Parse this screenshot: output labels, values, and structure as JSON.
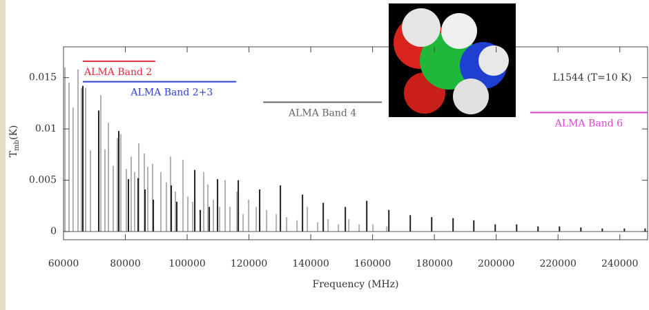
{
  "chart_data": {
    "type": "spectrum",
    "xlabel": "Frequency (MHz)",
    "ylabel": {
      "main": "T",
      "sub": "mb",
      "unit": "(K)"
    },
    "annotation": "L1544 (T=10 K)",
    "xlim": [
      60000,
      249000
    ],
    "ylim": [
      -0.0008,
      0.018
    ],
    "xticks": [
      60000,
      80000,
      100000,
      120000,
      140000,
      160000,
      180000,
      200000,
      220000,
      240000
    ],
    "yticks": [
      0,
      0.005,
      0.01,
      0.015
    ],
    "bands": [
      {
        "label": "ALMA Band 2",
        "color": "#e8283a",
        "xrange": [
          66260,
          89700
        ],
        "y": 0.0166
      },
      {
        "label": "ALMA Band 2+3",
        "color": "#2a3fd6",
        "xrange": [
          66260,
          115900
        ],
        "y": 0.0146
      },
      {
        "label": "ALMA Band 4",
        "color": "#666666",
        "xrange": [
          124600,
          163000
        ],
        "y": 0.0126
      },
      {
        "label": "ALMA Band 6",
        "color": "#e040d0",
        "xrange": [
          211000,
          249000
        ],
        "y": 0.0116
      }
    ],
    "series": [
      {
        "color": "#b0b0b0",
        "x": [
          60450,
          61790,
          63100,
          64690,
          65810,
          67150,
          68720,
          72070,
          73410,
          74530,
          76090,
          77430,
          78550,
          80340,
          81900,
          83020,
          84360,
          86150,
          87270,
          88830,
          91510,
          93300,
          94640,
          96210,
          98670,
          100230,
          101800,
          105370,
          106710,
          108500,
          110510,
          112300,
          113860,
          116100,
          118110,
          119900,
          122360,
          125710,
          128840,
          132190,
          135540,
          138900,
          142250,
          145600,
          148950,
          152310,
          155660,
          160130,
          164600
        ],
        "values": [
          0.016,
          0.0145,
          0.0121,
          0.0158,
          0.014,
          0.014,
          0.0079,
          0.0133,
          0.008,
          0.0106,
          0.0064,
          0.0091,
          0.0095,
          0.0061,
          0.0073,
          0.0058,
          0.0086,
          0.0076,
          0.0063,
          0.0066,
          0.0058,
          0.0048,
          0.0073,
          0.0039,
          0.007,
          0.0034,
          0.0029,
          0.0058,
          0.0046,
          0.0031,
          0.0024,
          0.005,
          0.0024,
          0.0039,
          0.0017,
          0.0031,
          0.0024,
          0.0021,
          0.0017,
          0.0014,
          0.0011,
          0.0024,
          0.0009,
          0.0012,
          0.0007,
          0.0012,
          0.0007,
          0.0007,
          0.0005
        ]
      },
      {
        "color": "#1e1e1e",
        "x": [
          66260,
          71400,
          77880,
          81010,
          84140,
          86370,
          89060,
          94870,
          96650,
          102470,
          104250,
          107160,
          109840,
          116550,
          123470,
          130180,
          137330,
          144040,
          151190,
          158120,
          165270,
          172200,
          179130,
          186050,
          192760,
          199690,
          206620,
          213540,
          220470,
          227400,
          234330,
          241480,
          248190
        ],
        "values": [
          0.0142,
          0.0118,
          0.0098,
          0.0051,
          0.0052,
          0.0041,
          0.0031,
          0.0045,
          0.0029,
          0.006,
          0.0021,
          0.0024,
          0.0051,
          0.005,
          0.0041,
          0.0045,
          0.0036,
          0.0028,
          0.0024,
          0.003,
          0.0021,
          0.0016,
          0.0014,
          0.0013,
          0.0011,
          0.0007,
          0.0007,
          0.0005,
          0.0005,
          0.0004,
          0.0003,
          0.0003,
          0.0003
        ]
      }
    ]
  }
}
